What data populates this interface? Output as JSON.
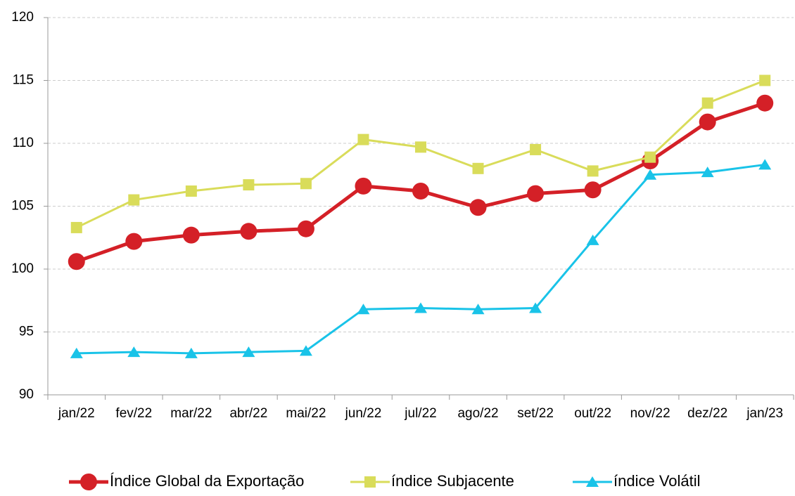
{
  "chart_data": {
    "type": "line",
    "categories": [
      "jan/22",
      "fev/22",
      "mar/22",
      "abr/22",
      "mai/22",
      "jun/22",
      "jul/22",
      "ago/22",
      "set/22",
      "out/22",
      "nov/22",
      "dez/22",
      "jan/23"
    ],
    "series": [
      {
        "name": "Índice Global da Exportação",
        "color": "#d42027",
        "marker": "circle",
        "values": [
          100.6,
          102.2,
          102.7,
          103.0,
          103.2,
          106.6,
          106.2,
          104.9,
          106.0,
          106.3,
          108.6,
          111.7,
          113.2
        ]
      },
      {
        "name": "índice Subjacente",
        "color": "#d9dc5a",
        "marker": "square",
        "values": [
          103.3,
          105.5,
          106.2,
          106.7,
          106.8,
          110.3,
          109.7,
          108.0,
          109.5,
          107.8,
          108.9,
          113.2,
          115.0
        ]
      },
      {
        "name": "índice Volátil",
        "color": "#19c3e8",
        "marker": "triangle",
        "values": [
          93.3,
          93.4,
          93.3,
          93.4,
          93.5,
          96.8,
          96.9,
          96.8,
          96.9,
          102.3,
          107.5,
          107.7,
          108.3
        ]
      }
    ],
    "ylim": [
      90,
      120
    ],
    "yticks": [
      90,
      95,
      100,
      105,
      110,
      115,
      120
    ],
    "grid": true,
    "legend": "bottom"
  }
}
